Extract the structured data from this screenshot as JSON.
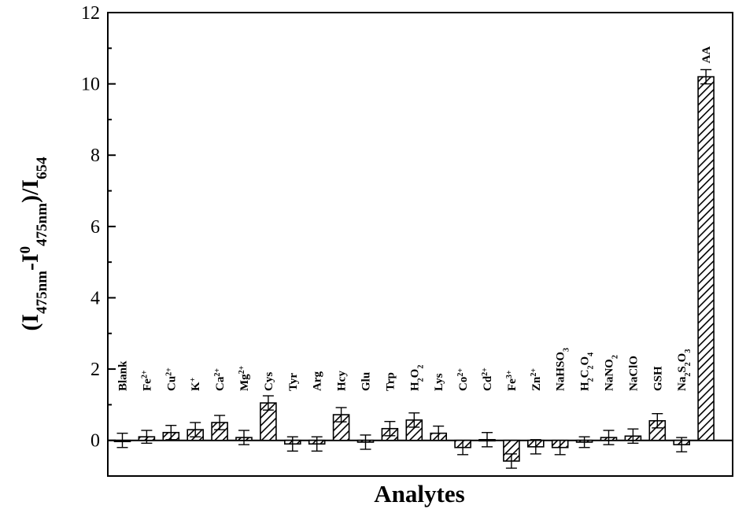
{
  "chart_data": {
    "type": "bar",
    "xlabel": "Analytes",
    "ylabel_parts": [
      "(I",
      "475nm",
      "-I",
      "0",
      "475nm",
      ")/I",
      "654"
    ],
    "ylim": [
      -1,
      12
    ],
    "yticks": [
      "0",
      "2",
      "4",
      "6",
      "8",
      "10",
      "12"
    ],
    "grid": false,
    "legend": "none",
    "colors": {
      "bar_stroke": "#000000",
      "hatch": "#000000",
      "background": "#ffffff"
    },
    "categories": [
      {
        "label": "Blank",
        "parts": [
          [
            "Blank",
            ""
          ]
        ]
      },
      {
        "label": "Fe2+",
        "parts": [
          [
            "Fe",
            ""
          ],
          [
            "2+",
            "sup"
          ]
        ]
      },
      {
        "label": "Cu2+",
        "parts": [
          [
            "Cu",
            ""
          ],
          [
            "2+",
            "sup"
          ]
        ]
      },
      {
        "label": "K+",
        "parts": [
          [
            "K",
            ""
          ],
          [
            "+",
            "sup"
          ]
        ]
      },
      {
        "label": "Ca2+",
        "parts": [
          [
            "Ca",
            ""
          ],
          [
            "2+",
            "sup"
          ]
        ]
      },
      {
        "label": "Mg2+",
        "parts": [
          [
            "Mg",
            ""
          ],
          [
            "2+",
            "sup"
          ]
        ]
      },
      {
        "label": "Cys",
        "parts": [
          [
            "Cys",
            ""
          ]
        ]
      },
      {
        "label": "Tyr",
        "parts": [
          [
            "Tyr",
            ""
          ]
        ]
      },
      {
        "label": "Arg",
        "parts": [
          [
            "Arg",
            ""
          ]
        ]
      },
      {
        "label": "Hcy",
        "parts": [
          [
            "Hcy",
            ""
          ]
        ]
      },
      {
        "label": "Glu",
        "parts": [
          [
            "Glu",
            ""
          ]
        ]
      },
      {
        "label": "Trp",
        "parts": [
          [
            "Trp",
            ""
          ]
        ]
      },
      {
        "label": "H2O2",
        "parts": [
          [
            "H",
            ""
          ],
          [
            "2",
            "sub"
          ],
          [
            "O",
            ""
          ],
          [
            "2",
            "sub"
          ]
        ]
      },
      {
        "label": "Lys",
        "parts": [
          [
            "Lys",
            ""
          ]
        ]
      },
      {
        "label": "Co2+",
        "parts": [
          [
            "Co",
            ""
          ],
          [
            "2+",
            "sup"
          ]
        ]
      },
      {
        "label": "Cd2+",
        "parts": [
          [
            "Cd",
            ""
          ],
          [
            "2+",
            "sup"
          ]
        ]
      },
      {
        "label": "Fe3+",
        "parts": [
          [
            "Fe",
            ""
          ],
          [
            "3+",
            "sup"
          ]
        ]
      },
      {
        "label": "Zn2+",
        "parts": [
          [
            "Zn",
            ""
          ],
          [
            "2+",
            "sup"
          ]
        ]
      },
      {
        "label": "NaHSO3",
        "parts": [
          [
            "NaHSO",
            ""
          ],
          [
            "3",
            "sub"
          ]
        ]
      },
      {
        "label": "H2C2O4",
        "parts": [
          [
            "H",
            ""
          ],
          [
            "2",
            "sub"
          ],
          [
            "C",
            ""
          ],
          [
            "2",
            "sub"
          ],
          [
            "O",
            ""
          ],
          [
            "4",
            "sub"
          ]
        ]
      },
      {
        "label": "NaNO2",
        "parts": [
          [
            "NaNO",
            ""
          ],
          [
            "2",
            "sub"
          ]
        ]
      },
      {
        "label": "NaClO",
        "parts": [
          [
            "NaClO",
            ""
          ]
        ]
      },
      {
        "label": "GSH",
        "parts": [
          [
            "GSH",
            ""
          ]
        ]
      },
      {
        "label": "Na2S2O3",
        "parts": [
          [
            "Na",
            ""
          ],
          [
            "2",
            "sub"
          ],
          [
            "S",
            ""
          ],
          [
            "2",
            "sub"
          ],
          [
            "O",
            ""
          ],
          [
            "3",
            "sub"
          ]
        ]
      },
      {
        "label": "AA",
        "parts": [
          [
            "AA",
            ""
          ]
        ]
      }
    ],
    "values": [
      0.0,
      0.1,
      0.22,
      0.3,
      0.5,
      0.08,
      1.05,
      -0.1,
      -0.1,
      0.72,
      -0.05,
      0.33,
      0.57,
      0.2,
      -0.2,
      0.02,
      -0.58,
      -0.18,
      -0.2,
      -0.05,
      0.08,
      0.12,
      0.55,
      -0.12,
      10.2
    ],
    "errors": [
      0.2,
      0.18,
      0.2,
      0.2,
      0.2,
      0.2,
      0.2,
      0.2,
      0.2,
      0.2,
      0.2,
      0.2,
      0.2,
      0.2,
      0.2,
      0.2,
      0.2,
      0.2,
      0.2,
      0.15,
      0.2,
      0.2,
      0.2,
      0.2,
      0.2
    ]
  }
}
